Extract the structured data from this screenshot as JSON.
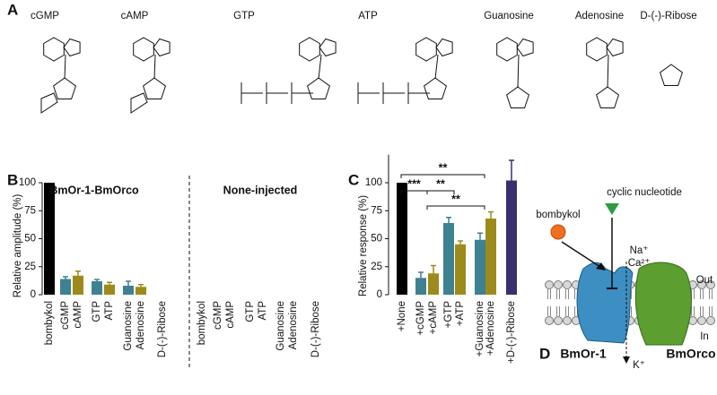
{
  "panel_labels": [
    "A",
    "B",
    "C",
    "D"
  ],
  "molecules": [
    "cGMP",
    "cAMP",
    "GTP",
    "ATP",
    "Guanosine",
    "Adenosine",
    "D-(-)-Ribose"
  ],
  "chart_data": [
    {
      "type": "bar",
      "ylabel": "Relative amplitude (%)",
      "group_titles": [
        "BmOr-1-BmOrco",
        "None-injected"
      ],
      "categories": [
        "bombykol",
        "cGMP",
        "cAMP",
        "GTP",
        "ATP",
        "Guanosine",
        "Adenosine",
        "D-(-)-Ribose",
        "bombykol",
        "cGMP",
        "cAMP",
        "GTP",
        "ATP",
        "Guanosine",
        "Adenosine",
        "D-(-)-Ribose"
      ],
      "values": [
        100,
        14,
        17,
        12,
        9,
        8,
        7,
        0,
        0,
        0,
        0,
        0,
        0,
        0,
        0,
        0
      ],
      "errors": [
        null,
        2,
        4,
        1.5,
        2,
        4,
        2,
        null,
        null,
        null,
        null,
        null,
        null,
        null,
        null,
        null
      ],
      "colors": [
        "#000000",
        "#3e8191",
        "#9c8b1c",
        "#3e8191",
        "#9c8b1c",
        "#3e8191",
        "#9c8b1c",
        "#3a2f6e",
        "#000000",
        "#3e8191",
        "#9c8b1c",
        "#3e8191",
        "#9c8b1c",
        "#3e8191",
        "#9c8b1c",
        "#3a2f6e"
      ],
      "ylim": [
        0,
        100
      ],
      "yticks": [
        0,
        25,
        50,
        75,
        100
      ]
    },
    {
      "type": "bar",
      "ylabel": "Relative response (%)",
      "categories": [
        "+None",
        "+cGMP",
        "+cAMP",
        "+GTP",
        "+ATP",
        "+Guanosine",
        "+Adenosine",
        "+D-(-)-Ribose"
      ],
      "values": [
        100,
        15,
        19,
        64,
        45,
        49,
        68,
        102
      ],
      "errors": [
        null,
        5,
        7,
        5,
        3,
        6,
        6,
        18
      ],
      "colors": [
        "#000000",
        "#3e8191",
        "#9c8b1c",
        "#3e8191",
        "#9c8b1c",
        "#3e8191",
        "#9c8b1c",
        "#3a2f6e"
      ],
      "annotations": [
        "**",
        "***",
        "**",
        "**"
      ],
      "ylim": [
        0,
        125
      ],
      "yticks": [
        0,
        25,
        50,
        75,
        100
      ]
    }
  ],
  "diagram": {
    "ligand": "bombykol",
    "modulator": "cyclic nucleotide",
    "ions_in": [
      "Na⁺",
      "Ca²⁺"
    ],
    "ion_out": "K⁺",
    "outside": "Out",
    "inside": "In",
    "receptor": "BmOr-1",
    "coreceptor": "BmOrco"
  }
}
